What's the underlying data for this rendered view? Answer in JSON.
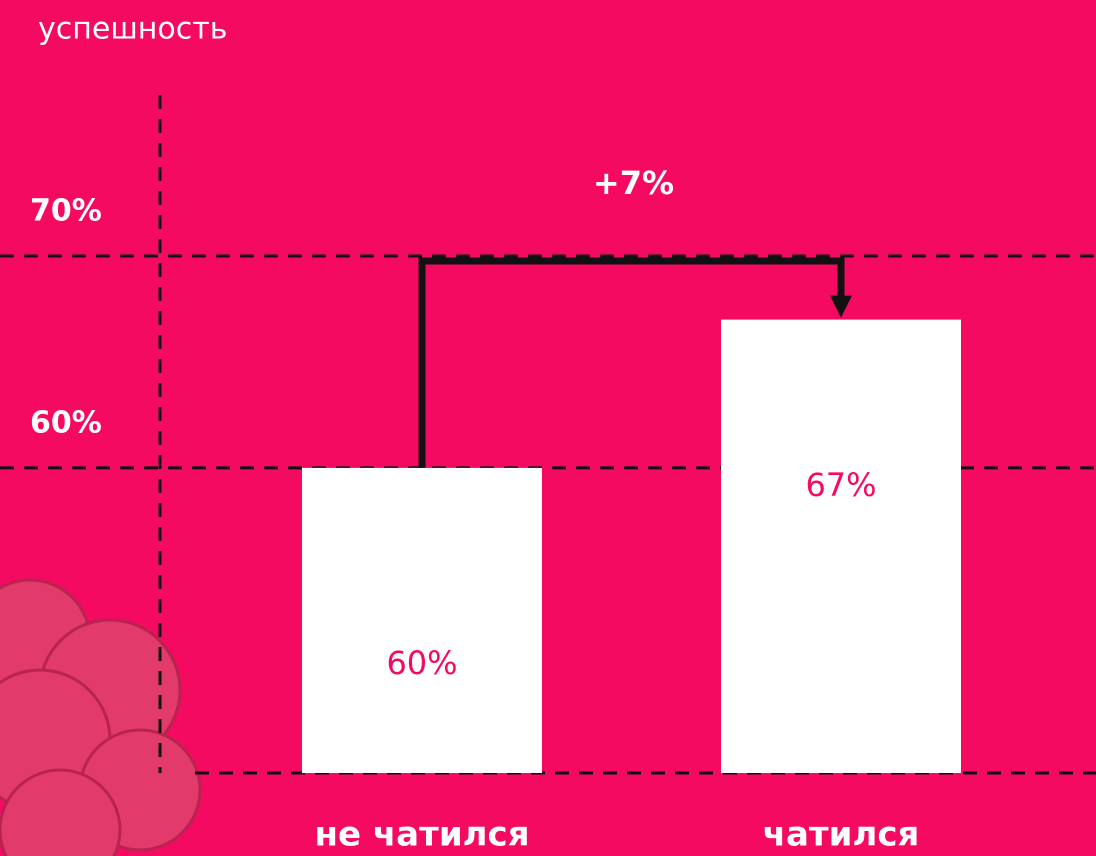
{
  "chart_data": {
    "type": "bar",
    "y_label": "успешность",
    "categories": [
      "не чатился",
      "чатился"
    ],
    "values": [
      60,
      67
    ],
    "value_labels": [
      "60%",
      "67%"
    ],
    "color": "#ffffff",
    "label_color": "#f50a62",
    "background": "#f50a62",
    "ylim": [
      45.6,
      77.6
    ],
    "yticks": [
      {
        "value": 60,
        "label": "60%"
      },
      {
        "value": 70,
        "label": "70%"
      }
    ],
    "grid": true,
    "annotation": "+7%"
  }
}
